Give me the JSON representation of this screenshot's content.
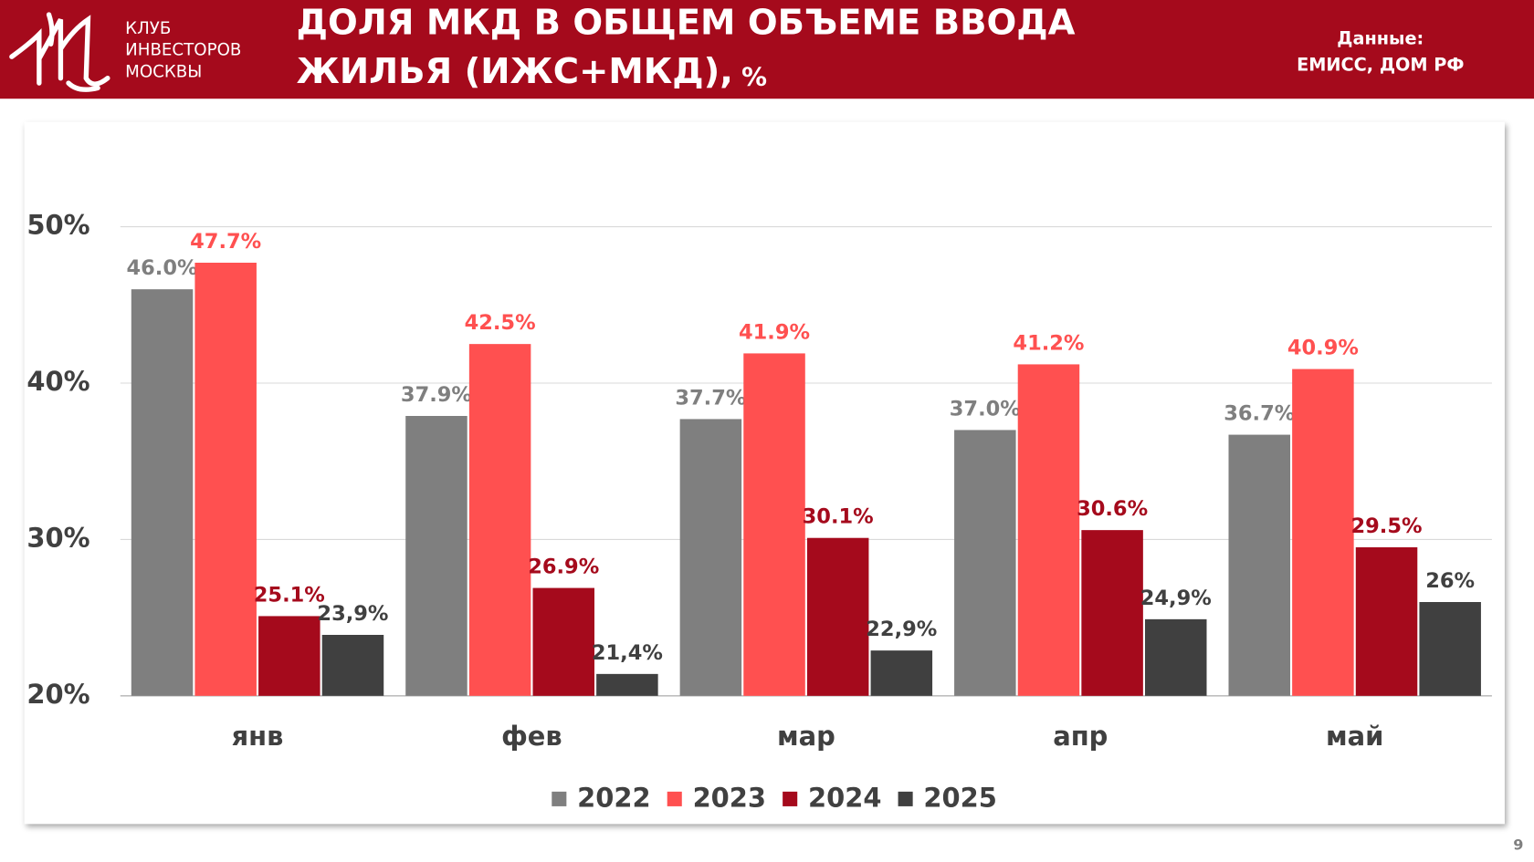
{
  "header": {
    "logo_lines": [
      "КЛУБ",
      "ИНВЕСТОРОВ",
      "МОСКВЫ"
    ],
    "title_lines": [
      "ДОЛЯ МКД В ОБЩЕМ ОБЪЕМЕ ВВОДА",
      "ЖИЛЬЯ (ИЖС+МКД),"
    ],
    "unit": "%",
    "source_lines": [
      "Данные:",
      "ЕМИСС, ДОМ РФ"
    ]
  },
  "page_number": "9",
  "chart_data": {
    "type": "bar",
    "categories": [
      "янв",
      "фев",
      "мар",
      "апр",
      "май"
    ],
    "series": [
      {
        "name": "2022",
        "color": "#7f7f7f",
        "label_color": "#7f7f7f",
        "values": [
          46.0,
          37.9,
          37.7,
          37.0,
          36.7
        ],
        "value_labels": [
          "46.0%",
          "37.9%",
          "37.7%",
          "37.0%",
          "36.7%"
        ]
      },
      {
        "name": "2023",
        "color": "#ff5050",
        "label_color": "#ff5050",
        "values": [
          47.7,
          42.5,
          41.9,
          41.2,
          40.9
        ],
        "value_labels": [
          "47.7%",
          "42.5%",
          "41.9%",
          "41.2%",
          "40.9%"
        ]
      },
      {
        "name": "2024",
        "color": "#a50a1c",
        "label_color": "#a50a1c",
        "values": [
          25.1,
          26.9,
          30.1,
          30.6,
          29.5
        ],
        "value_labels": [
          "25.1%",
          "26.9%",
          "30.1%",
          "30.6%",
          "29.5%"
        ]
      },
      {
        "name": "2025",
        "color": "#404040",
        "label_color": "#404040",
        "values": [
          23.9,
          21.4,
          22.9,
          24.9,
          26
        ],
        "value_labels": [
          "23,9%",
          "21,4%",
          "22,9%",
          "24,9%",
          "26%"
        ]
      }
    ],
    "ylim": [
      20,
      50
    ],
    "yticks": [
      {
        "value": 20,
        "label": "20%"
      },
      {
        "value": 30,
        "label": "30%"
      },
      {
        "value": 40,
        "label": "40%"
      },
      {
        "value": 50,
        "label": "50%"
      }
    ],
    "grid": true,
    "legend": "bottom"
  }
}
